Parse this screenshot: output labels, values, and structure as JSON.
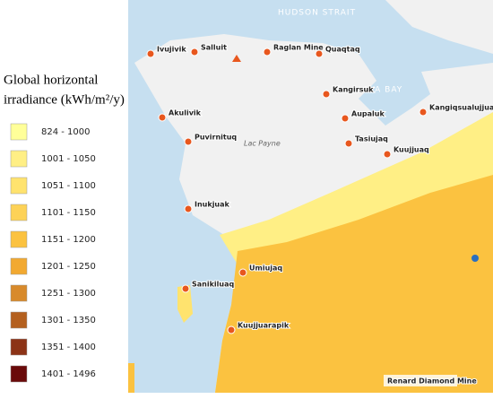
{
  "legend": {
    "title_line1": "Global horizontal",
    "title_line2": "irradiance (kWh/m²/y)",
    "items": [
      {
        "label": "824 - 1000",
        "color": "#ffff99"
      },
      {
        "label": "1001 - 1050",
        "color": "#ffef85"
      },
      {
        "label": "1051 - 1100",
        "color": "#ffe36e"
      },
      {
        "label": "1101 - 1150",
        "color": "#fdd257"
      },
      {
        "label": "1151 - 1200",
        "color": "#fbc240"
      },
      {
        "label": "1201 - 1250",
        "color": "#f2a931"
      },
      {
        "label": "1251 - 1300",
        "color": "#d88a2b"
      },
      {
        "label": "1301 - 1350",
        "color": "#b4601f"
      },
      {
        "label": "1351 - 1400",
        "color": "#8c3316"
      },
      {
        "label": "1401 - 1496",
        "color": "#6a0a0a"
      }
    ]
  },
  "map": {
    "water_labels": [
      "HUDSON STRAIT",
      "AVA BAY"
    ],
    "lake_label": "Lac Payne",
    "places": [
      "Ivujivik",
      "Salluit",
      "Raglan Mine",
      "Quaqtaq",
      "Kangirsuk",
      "Kangiqsualujjuaq",
      "Akulivik",
      "Aupaluk",
      "Puvirnituq",
      "Tasiujaq",
      "Kuujjuaq",
      "Inukjuak",
      "Umiujaq",
      "Sanikiluaq",
      "Kuujjuarapik"
    ],
    "mine_label": "Renard Diamond Mine"
  }
}
